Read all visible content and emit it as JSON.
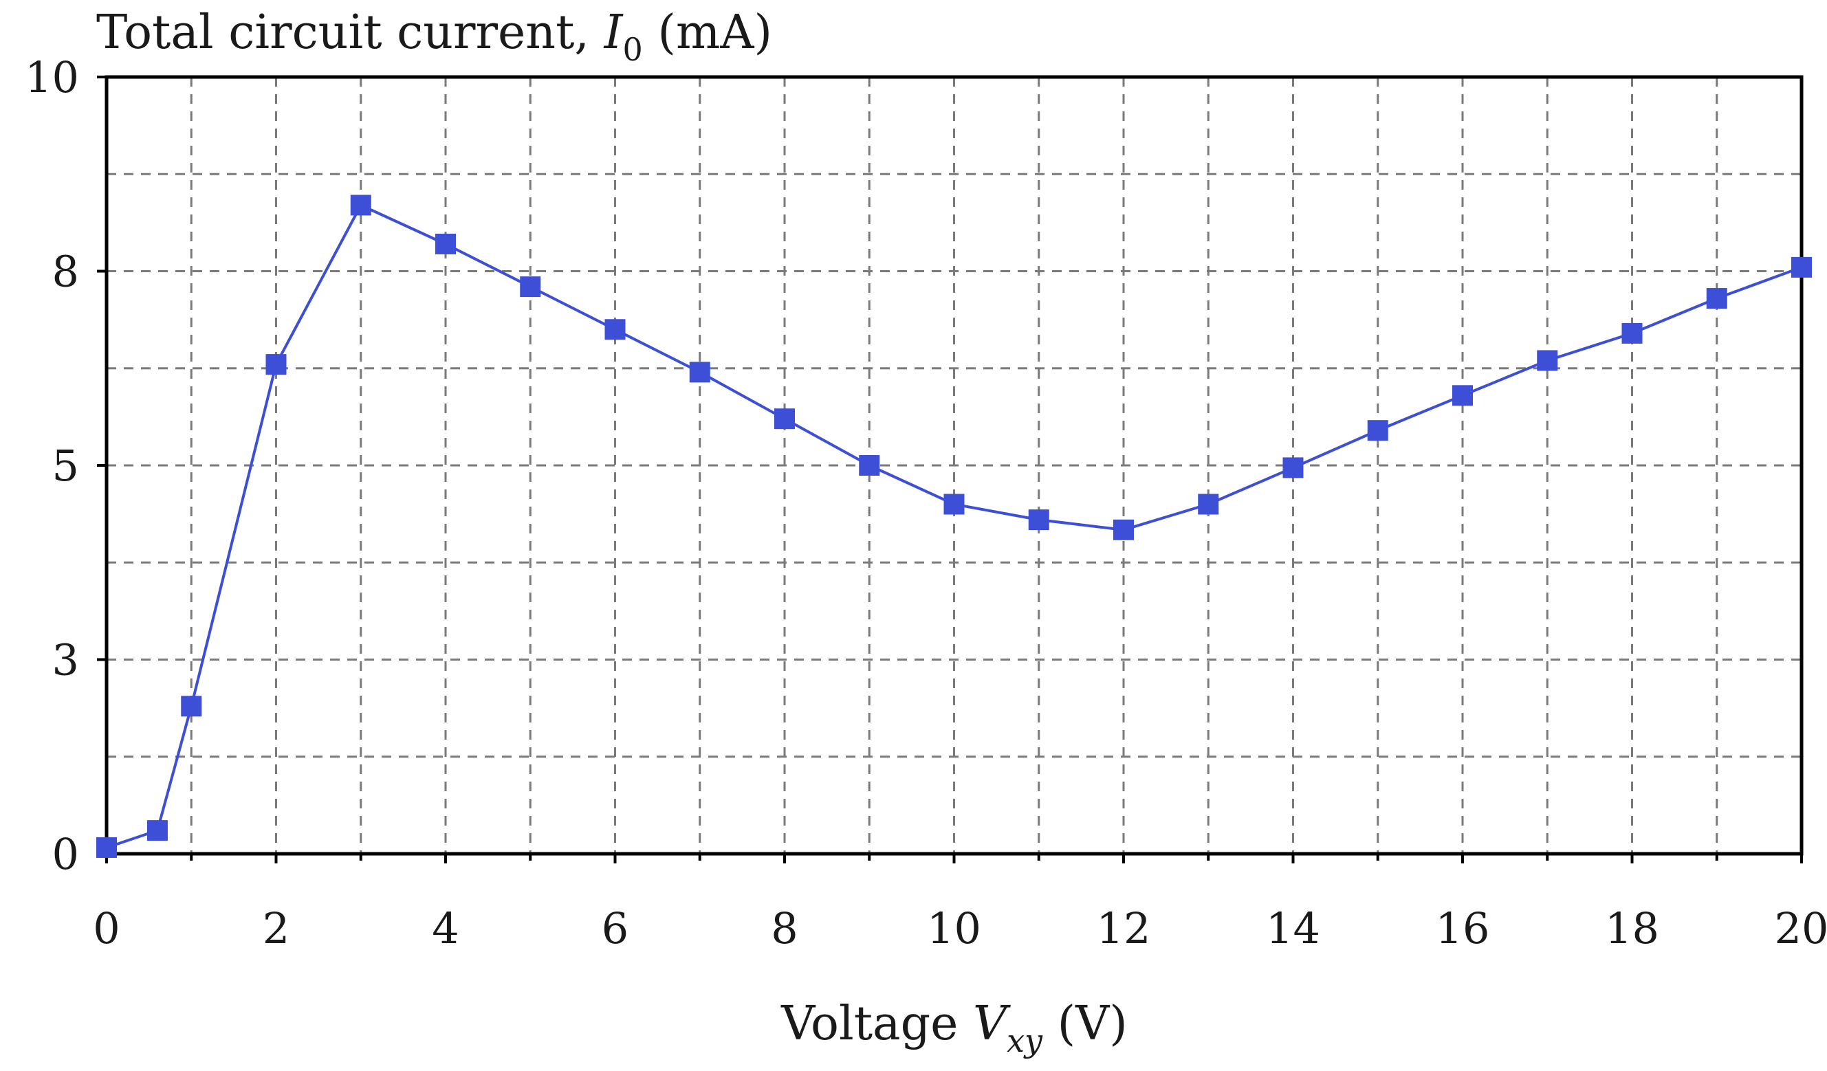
{
  "chart_data": {
    "type": "line",
    "ylabel": {
      "prefix": "Total circuit current, ",
      "var": "I",
      "sub": "0",
      "suffix": " (mA)"
    },
    "xlabel": {
      "prefix": "Voltage ",
      "var": "V",
      "sub": "xy",
      "suffix": " (V)"
    },
    "xlim": [
      0,
      20
    ],
    "ylim": [
      0,
      10
    ],
    "x_ticks": [
      "0",
      "2",
      "4",
      "6",
      "8",
      "10",
      "12",
      "14",
      "16",
      "18",
      "20"
    ],
    "y_ticks": [
      {
        "value": 0,
        "label": "0"
      },
      {
        "value": 2.5,
        "label": "3"
      },
      {
        "value": 5,
        "label": "5"
      },
      {
        "value": 7.5,
        "label": "8"
      },
      {
        "value": 10,
        "label": "10"
      }
    ],
    "grid": true,
    "marker": "square",
    "color": "#3d4fd6",
    "series": [
      {
        "x": [
          0,
          0.6,
          1,
          2,
          3,
          4,
          5,
          6,
          7,
          8,
          9,
          10,
          11,
          12,
          13,
          14,
          15,
          16,
          17,
          18,
          19,
          20
        ],
        "y": [
          0.08,
          0.3,
          1.9,
          6.3,
          8.35,
          7.85,
          7.3,
          6.75,
          6.2,
          5.6,
          5.0,
          4.5,
          4.3,
          4.17,
          4.5,
          4.97,
          5.45,
          5.9,
          6.35,
          6.7,
          7.15,
          7.55
        ]
      }
    ]
  }
}
